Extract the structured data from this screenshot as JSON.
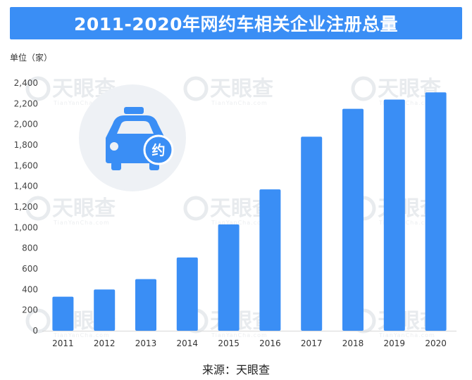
{
  "chart_data": {
    "type": "bar",
    "title": "2011-2020年网约车相关企业注册总量",
    "ylabel": "单位（家）",
    "xlabel": "",
    "categories": [
      "2011",
      "2012",
      "2013",
      "2014",
      "2015",
      "2016",
      "2017",
      "2018",
      "2019",
      "2020"
    ],
    "values": [
      330,
      400,
      500,
      710,
      1030,
      1370,
      1880,
      2150,
      2240,
      2310
    ],
    "ylim": [
      0,
      2400
    ],
    "yticks": [
      "0",
      "200",
      "400",
      "600",
      "800",
      "1,000",
      "1,200",
      "1,400",
      "1,600",
      "1,800",
      "2,000",
      "2,200",
      "2,400"
    ],
    "grid": false,
    "bar_color": "#3a8ef5"
  },
  "icon": {
    "name": "taxi-car-icon",
    "badge_text": "约",
    "circle_color": "#eef1f5",
    "car_color": "#3a8ef5"
  },
  "watermark": {
    "text": "天眼查",
    "sub": "TianYanCha.com"
  },
  "source": "来源：天眼查"
}
